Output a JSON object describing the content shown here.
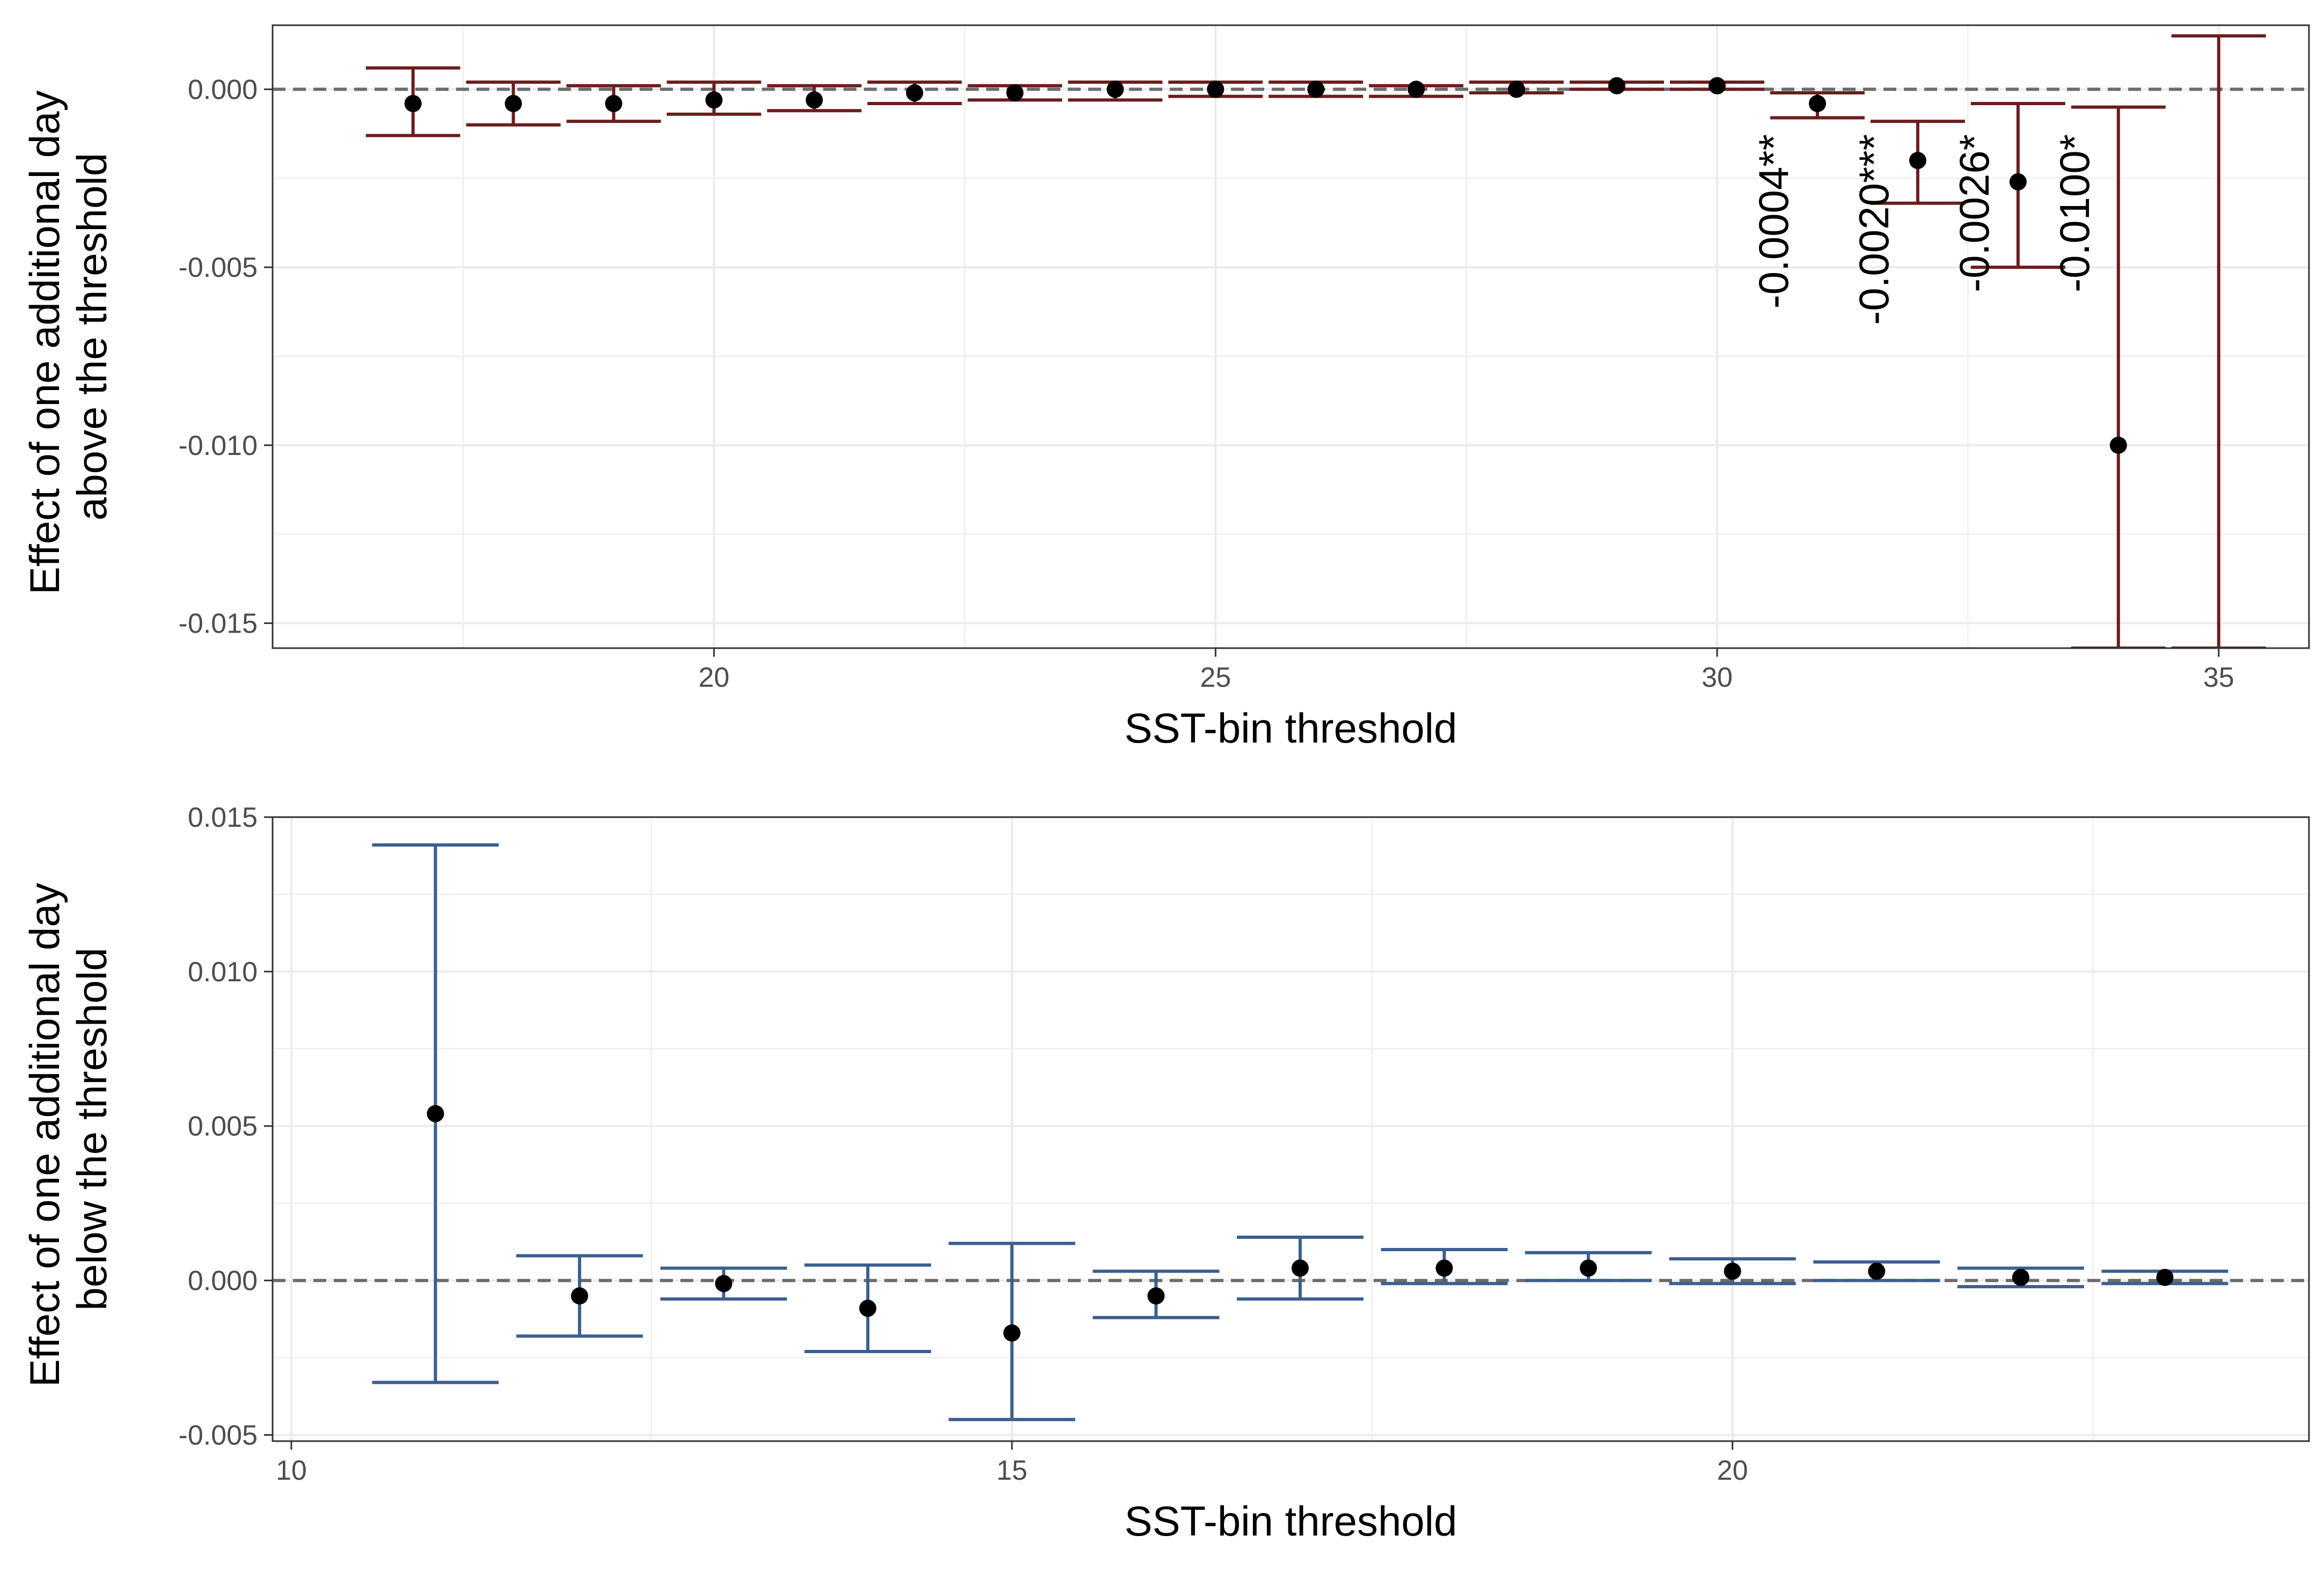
{
  "chart_data": [
    {
      "type": "errorbar",
      "xlabel": "SST-bin threshold",
      "ylabel_lines": [
        "Effect of one additional day",
        "above the threshold"
      ],
      "xlim": [
        15.6,
        35.9
      ],
      "ylim": [
        -0.0157,
        0.0018
      ],
      "xticks": [
        20,
        25,
        30,
        35
      ],
      "yticks": [
        0.0,
        -0.005,
        -0.01,
        -0.015
      ],
      "ytick_labels": [
        "0.000",
        "-0.005",
        "-0.010",
        "-0.015"
      ],
      "grid": true,
      "reference_line_y": 0,
      "colors": {
        "bar": "#6b1d1d",
        "point": "#000000",
        "reference": "#6b6b6b"
      },
      "points": [
        {
          "x": 17,
          "y": -0.0004,
          "lo": -0.0013,
          "hi": 0.0006
        },
        {
          "x": 18,
          "y": -0.0004,
          "lo": -0.001,
          "hi": 0.0002
        },
        {
          "x": 19,
          "y": -0.0004,
          "lo": -0.0009,
          "hi": 0.0001
        },
        {
          "x": 20,
          "y": -0.0003,
          "lo": -0.0007,
          "hi": 0.0002
        },
        {
          "x": 21,
          "y": -0.0003,
          "lo": -0.0006,
          "hi": 0.0001
        },
        {
          "x": 22,
          "y": -0.0001,
          "lo": -0.0004,
          "hi": 0.0002
        },
        {
          "x": 23,
          "y": -0.0001,
          "lo": -0.0003,
          "hi": 0.0001
        },
        {
          "x": 24,
          "y": 0.0,
          "lo": -0.0003,
          "hi": 0.0002
        },
        {
          "x": 25,
          "y": 0.0,
          "lo": -0.0002,
          "hi": 0.0002
        },
        {
          "x": 26,
          "y": 0.0,
          "lo": -0.0002,
          "hi": 0.0002
        },
        {
          "x": 27,
          "y": 0.0,
          "lo": -0.0002,
          "hi": 0.0001
        },
        {
          "x": 28,
          "y": 0.0,
          "lo": -0.0001,
          "hi": 0.0002
        },
        {
          "x": 29,
          "y": 0.0001,
          "lo": 0.0,
          "hi": 0.0002
        },
        {
          "x": 30,
          "y": 0.0001,
          "lo": 0.0,
          "hi": 0.0002
        },
        {
          "x": 31,
          "y": -0.0004,
          "lo": -0.0008,
          "hi": -0.0001
        },
        {
          "x": 32,
          "y": -0.002,
          "lo": -0.0032,
          "hi": -0.0009
        },
        {
          "x": 33,
          "y": -0.0026,
          "lo": -0.005,
          "hi": -0.0004
        },
        {
          "x": 34,
          "y": -0.01,
          "lo": -0.0157,
          "hi": -0.0005
        },
        {
          "x": 35,
          "y": null,
          "lo": -0.0157,
          "hi": 0.0015
        }
      ],
      "annotations": [
        {
          "x": 31,
          "text": "-0.0004**"
        },
        {
          "x": 32,
          "text": "-0.0020***"
        },
        {
          "x": 33,
          "text": "-0.0026*"
        },
        {
          "x": 34,
          "text": "-0.0100*"
        }
      ]
    },
    {
      "type": "errorbar",
      "xlabel": "SST-bin threshold",
      "ylabel_lines": [
        "Effect of one additional day",
        "below the threshold"
      ],
      "xlim": [
        9.87,
        24.0
      ],
      "ylim": [
        -0.0052,
        0.015
      ],
      "xticks": [
        10,
        15,
        20
      ],
      "yticks": [
        0.015,
        0.01,
        0.005,
        0.0,
        -0.005
      ],
      "ytick_labels": [
        "0.015",
        "0.010",
        "0.005",
        "0.000",
        "-0.005"
      ],
      "grid": true,
      "reference_line_y": 0,
      "colors": {
        "bar": "#3b5f8f",
        "point": "#000000",
        "reference": "#6b6b6b"
      },
      "points": [
        {
          "x": 11,
          "y": 0.0054,
          "lo": -0.0033,
          "hi": 0.0141
        },
        {
          "x": 12,
          "y": -0.0005,
          "lo": -0.0018,
          "hi": 0.0008
        },
        {
          "x": 13,
          "y": -0.0001,
          "lo": -0.0006,
          "hi": 0.0004
        },
        {
          "x": 14,
          "y": -0.0009,
          "lo": -0.0023,
          "hi": 0.0005
        },
        {
          "x": 15,
          "y": -0.0017,
          "lo": -0.0045,
          "hi": 0.0012
        },
        {
          "x": 16,
          "y": -0.0005,
          "lo": -0.0012,
          "hi": 0.0003
        },
        {
          "x": 17,
          "y": 0.0004,
          "lo": -0.0006,
          "hi": 0.0014
        },
        {
          "x": 18,
          "y": 0.0004,
          "lo": -0.0001,
          "hi": 0.001
        },
        {
          "x": 19,
          "y": 0.0004,
          "lo": 0.0,
          "hi": 0.0009
        },
        {
          "x": 20,
          "y": 0.0003,
          "lo": -0.0001,
          "hi": 0.0007
        },
        {
          "x": 21,
          "y": 0.0003,
          "lo": 0.0,
          "hi": 0.0006
        },
        {
          "x": 22,
          "y": 0.0001,
          "lo": -0.0002,
          "hi": 0.0004
        },
        {
          "x": 23,
          "y": 0.0001,
          "lo": -0.0001,
          "hi": 0.0003
        }
      ],
      "annotations": []
    }
  ]
}
